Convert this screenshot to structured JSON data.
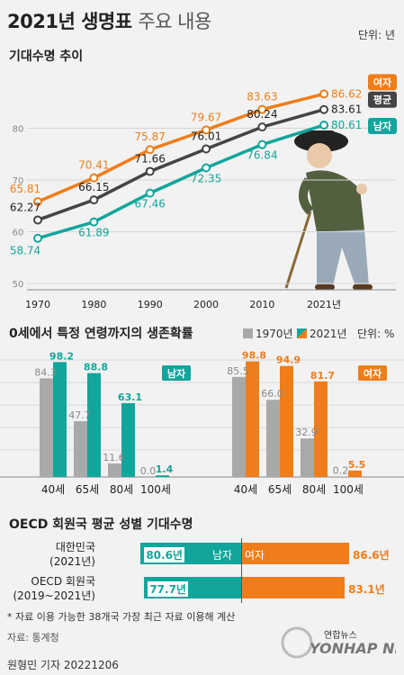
{
  "header": {
    "title_bold": "2021년 생명표",
    "title_thin": "주요 내용",
    "unit": "단위: 년"
  },
  "section1": {
    "title": "기대수명 추이"
  },
  "colors": {
    "female": "#ef7d1a",
    "avg": "#444444",
    "male": "#12a59c",
    "y1970": "#a9a9a9"
  },
  "chart_data": [
    {
      "type": "line",
      "title": "기대수명 추이",
      "x": [
        "1970",
        "1980",
        "1990",
        "2000",
        "2010",
        "2021년"
      ],
      "x_values": [
        1970,
        1980,
        1990,
        2000,
        2010,
        2021
      ],
      "ylim": [
        50,
        90
      ],
      "yticks": [
        "50",
        "60",
        "70",
        "80"
      ],
      "series": [
        {
          "name": "여자",
          "key": "female",
          "values": [
            65.81,
            70.41,
            75.87,
            79.67,
            83.63,
            86.62
          ],
          "labels": [
            "65.81",
            "70.41",
            "75.87",
            "79.67",
            "83.63",
            "86.62"
          ]
        },
        {
          "name": "평균",
          "key": "avg",
          "values": [
            62.27,
            66.15,
            71.66,
            76.01,
            80.24,
            83.61
          ],
          "labels": [
            "62.27",
            "66.15",
            "71.66",
            "76.01",
            "80.24",
            "83.61"
          ]
        },
        {
          "name": "남자",
          "key": "male",
          "values": [
            58.74,
            61.89,
            67.46,
            72.35,
            76.84,
            80.61
          ],
          "labels": [
            "58.74",
            "61.89",
            "67.46",
            "72.35",
            "76.84",
            "80.61"
          ]
        }
      ]
    },
    {
      "type": "bar",
      "title": "0세에서 특정 연령까지의 생존확률",
      "unit": "단위: %",
      "categories": [
        "40세",
        "65세",
        "80세",
        "100세"
      ],
      "legend": [
        "1970년",
        "2021년"
      ],
      "groups": [
        {
          "name": "남자",
          "y1970": [
            84.3,
            47.7,
            11.6,
            0.0
          ],
          "y2021": [
            98.2,
            88.8,
            63.1,
            1.4
          ],
          "l1970": [
            "84.3",
            "47.7",
            "11.6",
            "0.0"
          ],
          "l2021": [
            "98.2",
            "88.8",
            "63.1",
            "1.4"
          ]
        },
        {
          "name": "여자",
          "y1970": [
            85.5,
            66.0,
            32.9,
            0.2
          ],
          "y2021": [
            98.8,
            94.9,
            81.7,
            5.5
          ],
          "l1970": [
            "85.5",
            "66.0",
            "32.9",
            "0.2"
          ],
          "l2021": [
            "98.8",
            "94.9",
            "81.7",
            "5.5"
          ]
        }
      ],
      "ylim": [
        0,
        100
      ]
    },
    {
      "type": "bar",
      "title": "OECD 회원국 평균 성별 기대수명",
      "rows": [
        {
          "label1": "대한민국",
          "label2": "(2021년)",
          "male": 80.6,
          "female": 86.6,
          "male_label": "80.6년",
          "female_label": "86.6년"
        },
        {
          "label1": "OECD 회원국",
          "label2": "(2019~2021년)",
          "male": 77.7,
          "female": 83.1,
          "male_label": "77.7년",
          "female_label": "83.1년"
        }
      ],
      "male_tag": "남자",
      "female_tag": "여자"
    }
  ],
  "section2": {
    "title": "0세에서 특정 연령까지의 생존확률",
    "legend_1970": "1970년",
    "legend_2021": "2021년",
    "unit": "단위: %"
  },
  "section3": {
    "title": "OECD 회원국 평균 성별 기대수명",
    "footnote": "* 자료 이용 가능한 38개국 가장 최근 자료 이용해 계산"
  },
  "footer": {
    "source": "자료: 통계청",
    "byline": "원형민 기자",
    "date": "20221206",
    "logo_small": "연합뉴스",
    "logo_big": "YONHAP NEWS"
  }
}
